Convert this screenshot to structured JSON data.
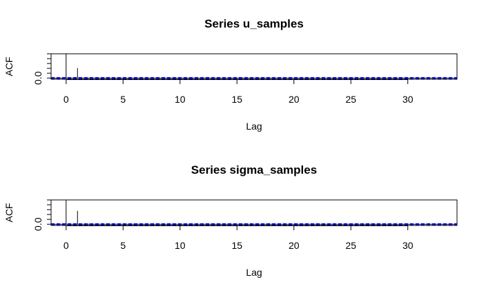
{
  "chart_data": [
    {
      "type": "bar",
      "title": "Series  u_samples",
      "xlabel": "Lag",
      "ylabel": "ACF",
      "xlim": [
        0,
        33
      ],
      "ylim": [
        -0.05,
        1.0
      ],
      "x_ticks": [
        "0",
        "5",
        "10",
        "15",
        "20",
        "25",
        "30"
      ],
      "x_tick_values": [
        0,
        5,
        10,
        15,
        20,
        25,
        30
      ],
      "y_tick_labels": [
        "0.0"
      ],
      "confidence_bound": 0.02,
      "x": [
        0,
        1,
        2,
        3,
        4,
        5,
        6,
        7,
        8,
        9,
        10,
        11,
        12,
        13,
        14,
        15,
        16,
        17,
        18,
        19,
        20,
        21,
        22,
        23,
        24,
        25,
        26,
        27,
        28,
        29,
        30,
        31,
        32,
        33
      ],
      "values": [
        1.0,
        0.41,
        0.01,
        0.0,
        0.0,
        0.0,
        0.0,
        0.0,
        0.0,
        0.0,
        0.0,
        0.0,
        0.0,
        0.0,
        0.0,
        0.0,
        0.0,
        0.0,
        0.0,
        0.0,
        0.0,
        0.0,
        0.0,
        0.0,
        0.0,
        0.0,
        0.0,
        0.0,
        0.0,
        0.0,
        0.0,
        0.0,
        0.0,
        0.0
      ],
      "bound_color": "#0000ff"
    },
    {
      "type": "bar",
      "title": "Series  sigma_samples",
      "xlabel": "Lag",
      "ylabel": "ACF",
      "xlim": [
        0,
        33
      ],
      "ylim": [
        -0.05,
        1.0
      ],
      "x_ticks": [
        "0",
        "5",
        "10",
        "15",
        "20",
        "25",
        "30"
      ],
      "x_tick_values": [
        0,
        5,
        10,
        15,
        20,
        25,
        30
      ],
      "y_tick_labels": [
        "0.0"
      ],
      "confidence_bound": 0.02,
      "x": [
        0,
        1,
        2,
        3,
        4,
        5,
        6,
        7,
        8,
        9,
        10,
        11,
        12,
        13,
        14,
        15,
        16,
        17,
        18,
        19,
        20,
        21,
        22,
        23,
        24,
        25,
        26,
        27,
        28,
        29,
        30,
        31,
        32,
        33
      ],
      "values": [
        1.0,
        0.55,
        0.02,
        0.0,
        0.0,
        0.0,
        0.0,
        0.0,
        0.0,
        0.0,
        0.0,
        0.0,
        0.0,
        0.0,
        0.0,
        0.0,
        0.0,
        0.0,
        0.0,
        0.0,
        0.0,
        0.0,
        0.0,
        0.0,
        0.0,
        0.0,
        0.0,
        0.0,
        0.0,
        0.0,
        0.0,
        0.0,
        0.0,
        0.0
      ],
      "bound_color": "#0000ff"
    }
  ]
}
